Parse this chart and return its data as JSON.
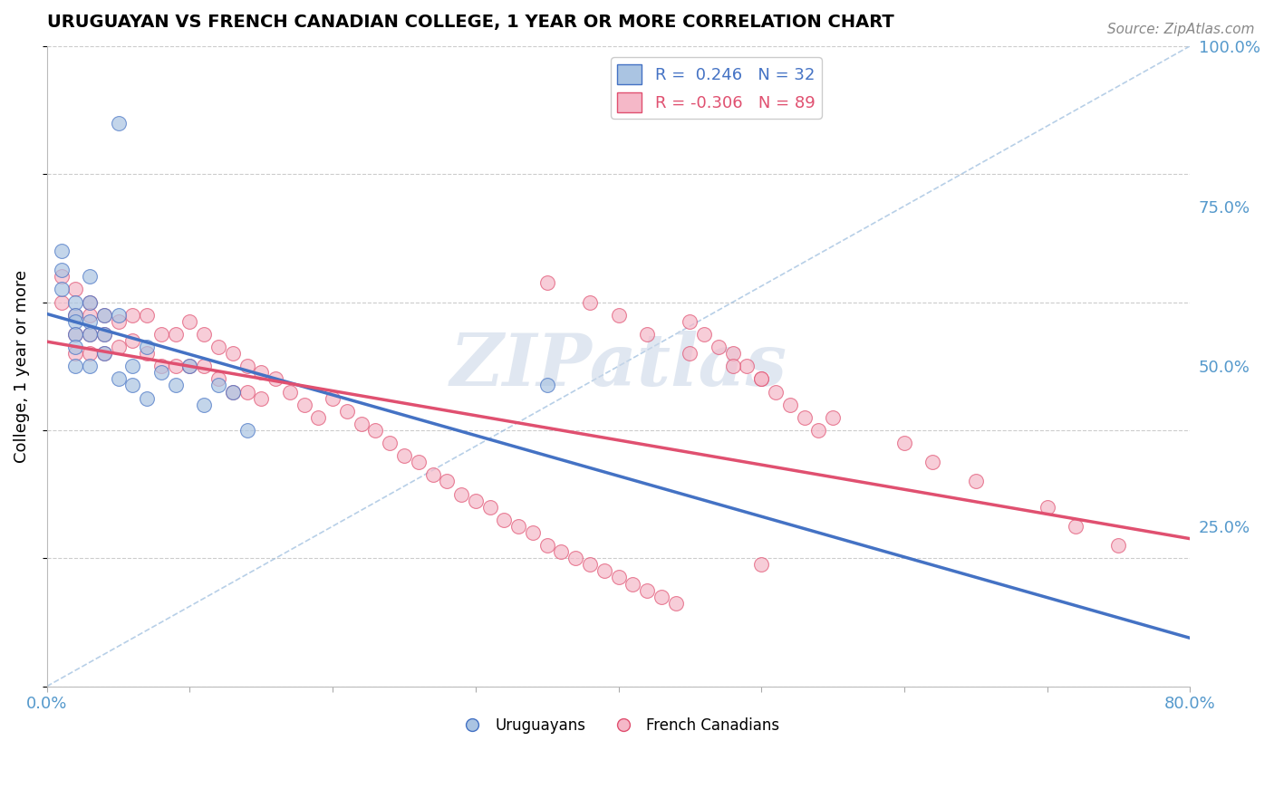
{
  "title": "URUGUAYAN VS FRENCH CANADIAN COLLEGE, 1 YEAR OR MORE CORRELATION CHART",
  "source_text": "Source: ZipAtlas.com",
  "ylabel": "College, 1 year or more",
  "xlim": [
    0.0,
    0.8
  ],
  "ylim": [
    0.0,
    1.0
  ],
  "legend_r_blue": "0.246",
  "legend_n_blue": "32",
  "legend_r_pink": "-0.306",
  "legend_n_pink": "89",
  "color_blue": "#aac4e2",
  "color_pink": "#f5b8c8",
  "line_blue": "#4472C4",
  "line_pink": "#e05070",
  "watermark_text": "ZIPatlas",
  "uruguayan_x": [
    0.01,
    0.01,
    0.01,
    0.02,
    0.02,
    0.02,
    0.02,
    0.02,
    0.02,
    0.03,
    0.03,
    0.03,
    0.03,
    0.03,
    0.04,
    0.04,
    0.04,
    0.05,
    0.05,
    0.06,
    0.06,
    0.07,
    0.07,
    0.08,
    0.09,
    0.1,
    0.11,
    0.12,
    0.13,
    0.14,
    0.35,
    0.05
  ],
  "uruguayan_y": [
    0.68,
    0.65,
    0.62,
    0.6,
    0.58,
    0.57,
    0.55,
    0.53,
    0.5,
    0.64,
    0.6,
    0.57,
    0.55,
    0.5,
    0.58,
    0.55,
    0.52,
    0.58,
    0.48,
    0.5,
    0.47,
    0.53,
    0.45,
    0.49,
    0.47,
    0.5,
    0.44,
    0.47,
    0.46,
    0.4,
    0.47,
    0.88
  ],
  "fc_x": [
    0.01,
    0.01,
    0.02,
    0.02,
    0.02,
    0.02,
    0.03,
    0.03,
    0.03,
    0.03,
    0.04,
    0.04,
    0.04,
    0.05,
    0.05,
    0.06,
    0.06,
    0.07,
    0.07,
    0.08,
    0.08,
    0.09,
    0.09,
    0.1,
    0.1,
    0.11,
    0.11,
    0.12,
    0.12,
    0.13,
    0.13,
    0.14,
    0.14,
    0.15,
    0.15,
    0.16,
    0.17,
    0.18,
    0.19,
    0.2,
    0.21,
    0.22,
    0.23,
    0.24,
    0.25,
    0.26,
    0.27,
    0.28,
    0.29,
    0.3,
    0.31,
    0.32,
    0.33,
    0.34,
    0.35,
    0.36,
    0.37,
    0.38,
    0.39,
    0.4,
    0.41,
    0.42,
    0.43,
    0.44,
    0.45,
    0.46,
    0.47,
    0.48,
    0.49,
    0.5,
    0.51,
    0.52,
    0.53,
    0.54,
    0.35,
    0.38,
    0.4,
    0.42,
    0.45,
    0.48,
    0.5,
    0.55,
    0.6,
    0.62,
    0.65,
    0.7,
    0.72,
    0.75,
    0.5
  ],
  "fc_y": [
    0.64,
    0.6,
    0.62,
    0.58,
    0.55,
    0.52,
    0.6,
    0.58,
    0.55,
    0.52,
    0.58,
    0.55,
    0.52,
    0.57,
    0.53,
    0.58,
    0.54,
    0.58,
    0.52,
    0.55,
    0.5,
    0.55,
    0.5,
    0.57,
    0.5,
    0.55,
    0.5,
    0.53,
    0.48,
    0.52,
    0.46,
    0.5,
    0.46,
    0.49,
    0.45,
    0.48,
    0.46,
    0.44,
    0.42,
    0.45,
    0.43,
    0.41,
    0.4,
    0.38,
    0.36,
    0.35,
    0.33,
    0.32,
    0.3,
    0.29,
    0.28,
    0.26,
    0.25,
    0.24,
    0.22,
    0.21,
    0.2,
    0.19,
    0.18,
    0.17,
    0.16,
    0.15,
    0.14,
    0.13,
    0.57,
    0.55,
    0.53,
    0.52,
    0.5,
    0.48,
    0.46,
    0.44,
    0.42,
    0.4,
    0.63,
    0.6,
    0.58,
    0.55,
    0.52,
    0.5,
    0.48,
    0.42,
    0.38,
    0.35,
    0.32,
    0.28,
    0.25,
    0.22,
    0.19
  ]
}
